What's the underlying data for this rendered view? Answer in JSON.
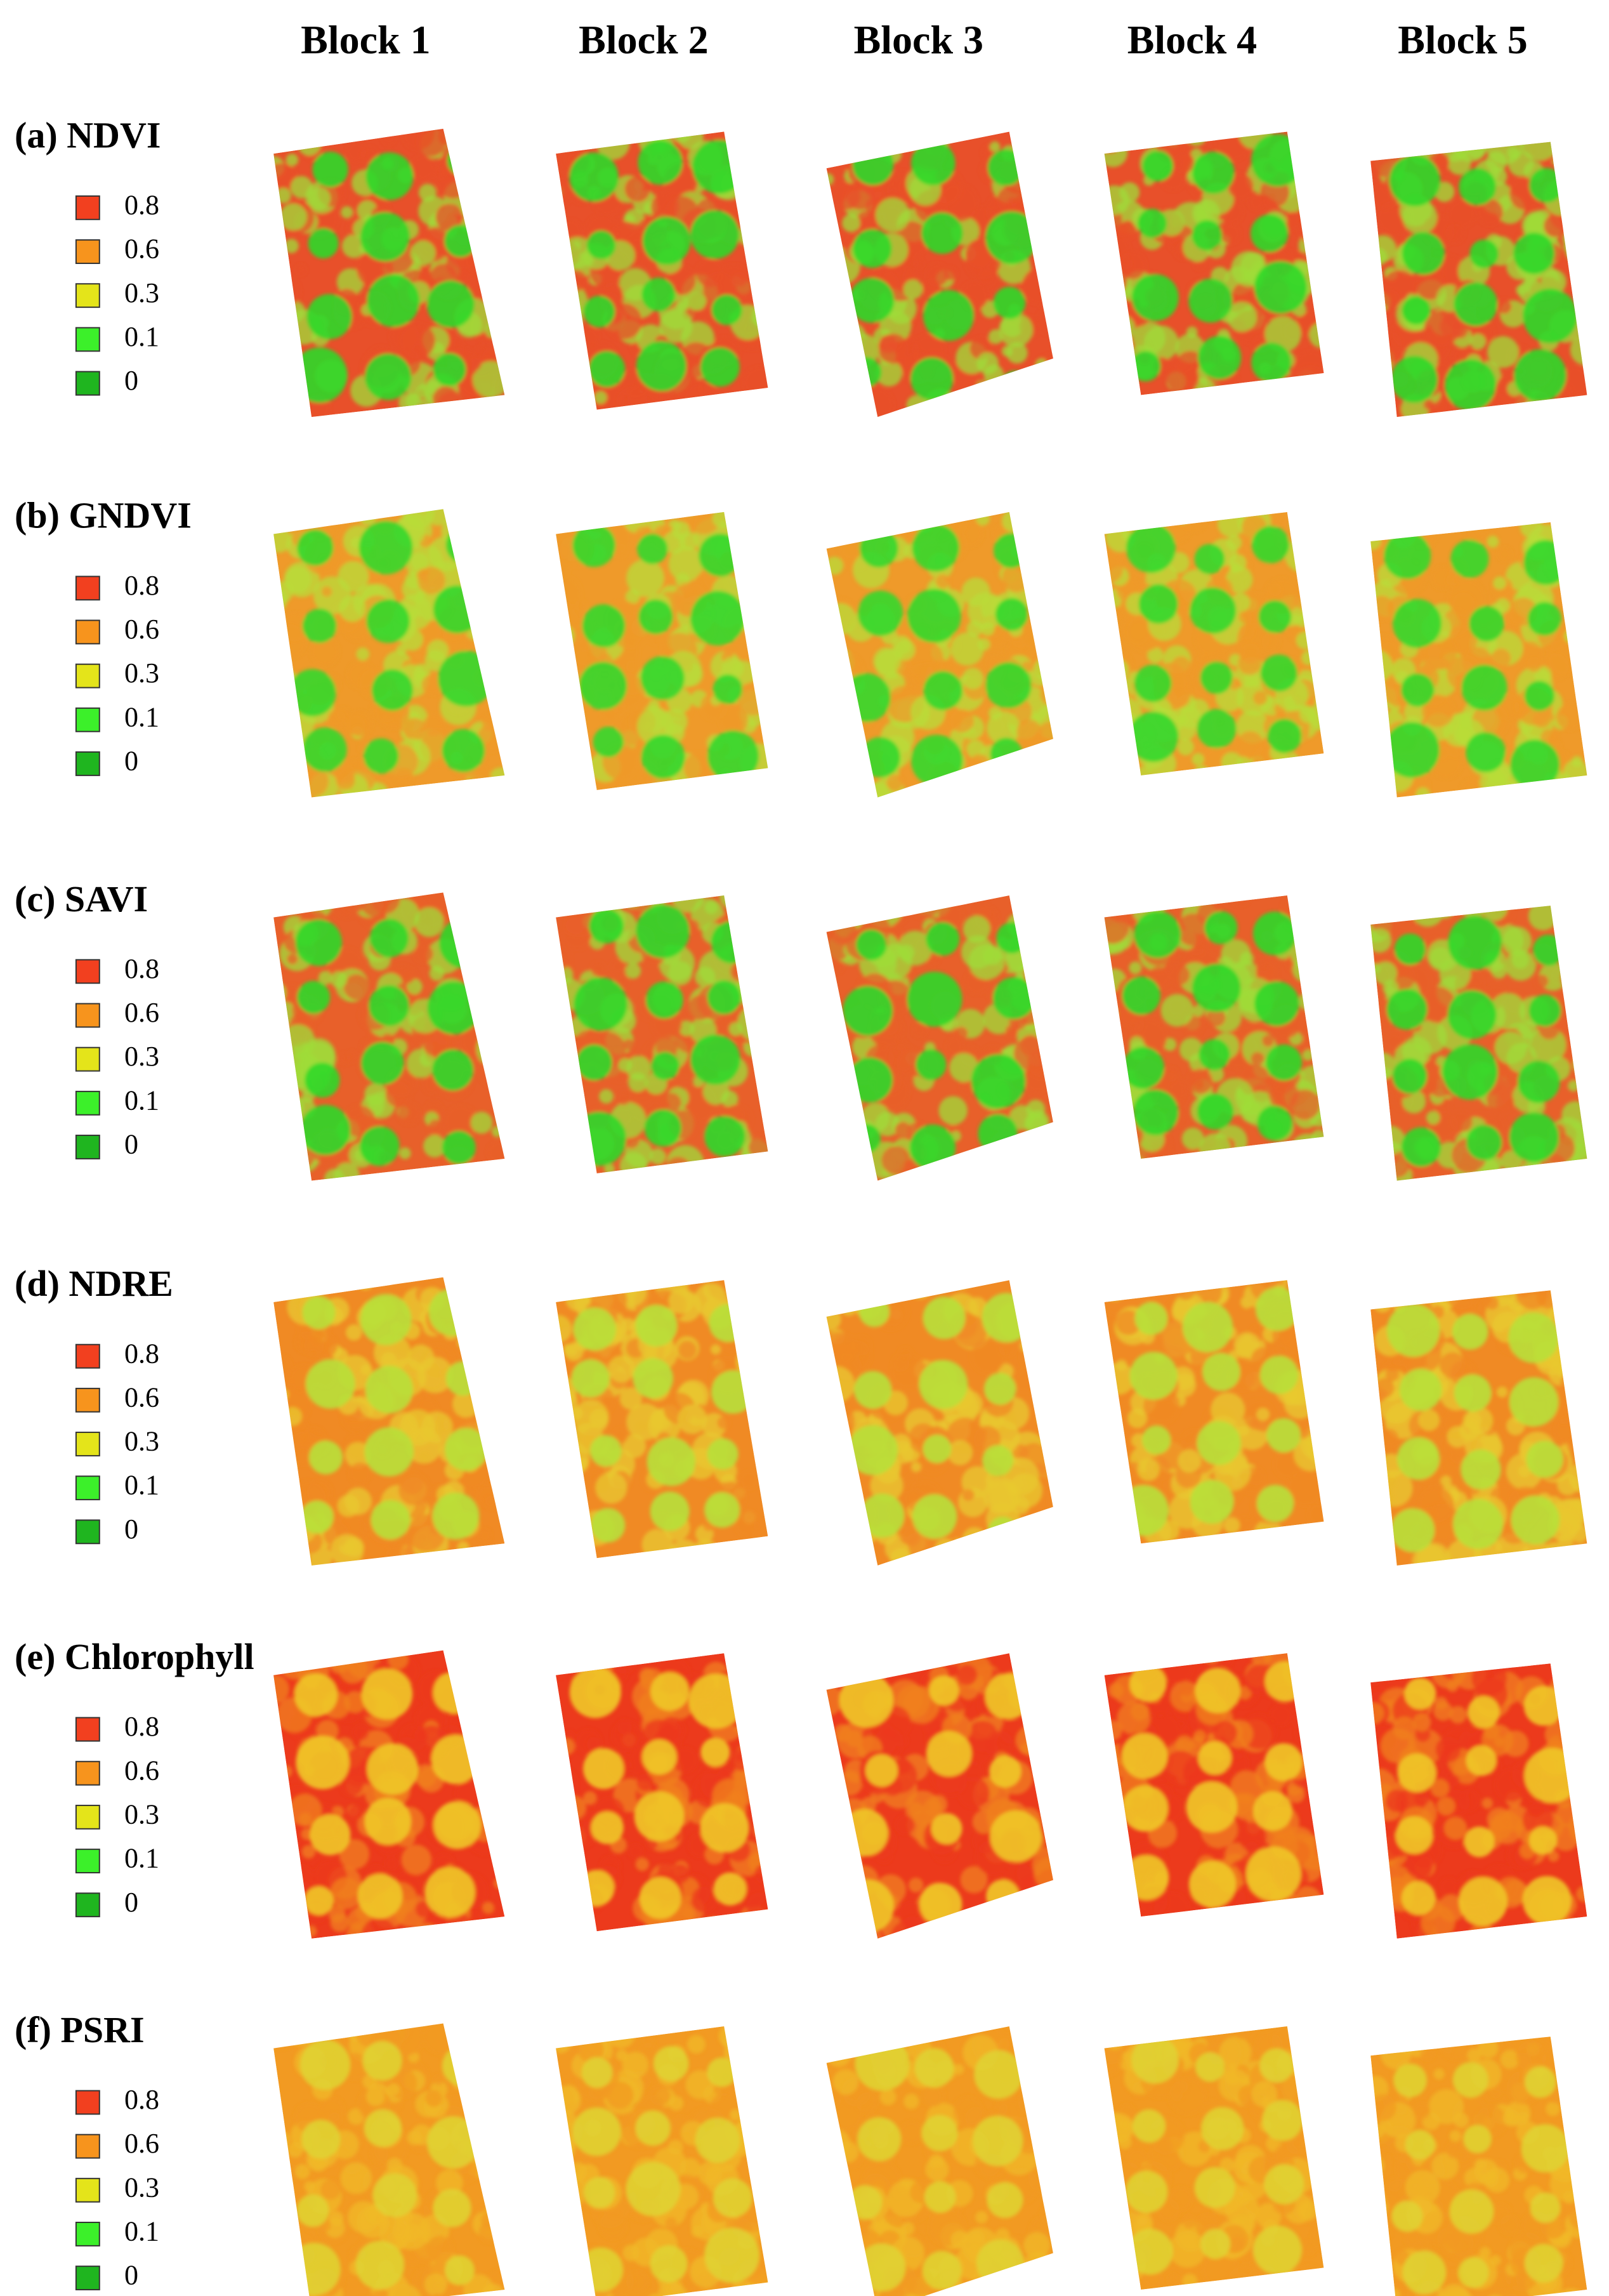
{
  "columns": [
    "Block 1",
    "Block 2",
    "Block 3",
    "Block 4",
    "Block 5"
  ],
  "rows": [
    {
      "label": "(a) NDVI"
    },
    {
      "label": "(b) GNDVI"
    },
    {
      "label": "(c) SAVI"
    },
    {
      "label": "(d) NDRE"
    },
    {
      "label": "(e) Chlorophyll"
    },
    {
      "label": "(f) PSRI"
    }
  ],
  "legend": [
    {
      "label": "0.8",
      "color": "#f2401f"
    },
    {
      "label": "0.6",
      "color": "#f7941d"
    },
    {
      "label": "0.3",
      "color": "#e4e41a"
    },
    {
      "label": "0.1",
      "color": "#3cf02a"
    },
    {
      "label": "0",
      "color": "#1fb51f"
    }
  ]
}
